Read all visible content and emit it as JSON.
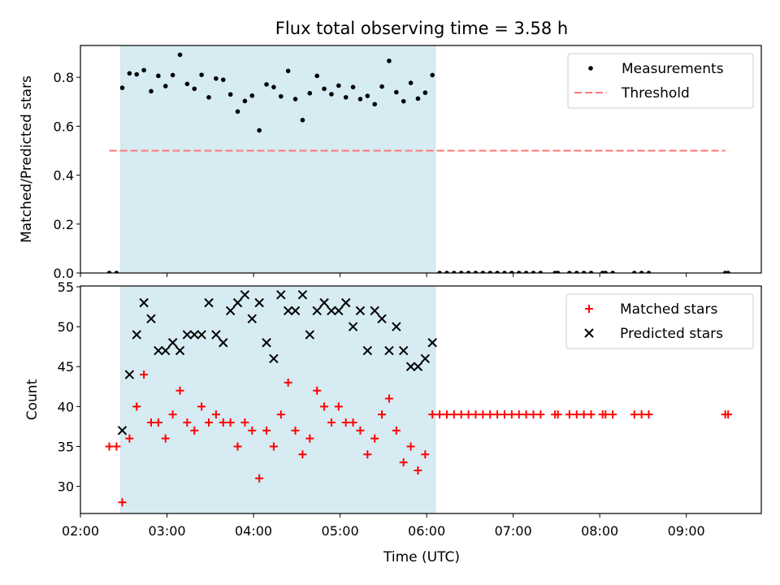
{
  "title": "Flux total observing time = 3.58 h",
  "xlabel": "Time (UTC)",
  "chart_data": [
    {
      "type": "scatter",
      "ylabel": "Matched/Predicted stars",
      "xlim": [
        "02:00",
        "09:52"
      ],
      "ylim": [
        0,
        0.93
      ],
      "yticks": [
        "0.0",
        "0.2",
        "0.4",
        "0.6",
        "0.8"
      ],
      "legend_position": "top-right",
      "shaded_region": {
        "x": [
          "02:28",
          "06:06"
        ],
        "color": "#add8e6"
      },
      "series": [
        {
          "name": "Measurements",
          "marker": "dot",
          "color": "#000000",
          "points": [
            [
              "02:20",
              0
            ],
            [
              "02:25",
              0
            ],
            [
              "02:29",
              0.757
            ],
            [
              "02:34",
              0.816
            ],
            [
              "02:39",
              0.812
            ],
            [
              "02:44",
              0.829
            ],
            [
              "02:49",
              0.743
            ],
            [
              "02:54",
              0.806
            ],
            [
              "02:59",
              0.764
            ],
            [
              "03:04",
              0.809
            ],
            [
              "03:09",
              0.892
            ],
            [
              "03:14",
              0.773
            ],
            [
              "03:19",
              0.753
            ],
            [
              "03:24",
              0.81
            ],
            [
              "03:29",
              0.718
            ],
            [
              "03:34",
              0.795
            ],
            [
              "03:39",
              0.79
            ],
            [
              "03:44",
              0.73
            ],
            [
              "03:49",
              0.66
            ],
            [
              "03:54",
              0.703
            ],
            [
              "03:59",
              0.725
            ],
            [
              "04:04",
              0.583
            ],
            [
              "04:09",
              0.771
            ],
            [
              "04:14",
              0.76
            ],
            [
              "04:19",
              0.722
            ],
            [
              "04:24",
              0.826
            ],
            [
              "04:29",
              0.711
            ],
            [
              "04:34",
              0.625
            ],
            [
              "04:39",
              0.735
            ],
            [
              "04:44",
              0.806
            ],
            [
              "04:49",
              0.753
            ],
            [
              "04:54",
              0.731
            ],
            [
              "04:59",
              0.766
            ],
            [
              "05:04",
              0.718
            ],
            [
              "05:09",
              0.76
            ],
            [
              "05:14",
              0.711
            ],
            [
              "05:19",
              0.724
            ],
            [
              "05:24",
              0.69
            ],
            [
              "05:29",
              0.762
            ],
            [
              "05:34",
              0.867
            ],
            [
              "05:39",
              0.739
            ],
            [
              "05:44",
              0.702
            ],
            [
              "05:49",
              0.777
            ],
            [
              "05:54",
              0.713
            ],
            [
              "05:59",
              0.737
            ],
            [
              "06:04",
              0.809
            ],
            [
              "06:09",
              0
            ],
            [
              "06:14",
              0
            ],
            [
              "06:19",
              0
            ],
            [
              "06:24",
              0
            ],
            [
              "06:29",
              0
            ],
            [
              "06:34",
              0
            ],
            [
              "06:39",
              0
            ],
            [
              "06:44",
              0
            ],
            [
              "06:49",
              0
            ],
            [
              "06:54",
              0
            ],
            [
              "06:59",
              0
            ],
            [
              "07:04",
              0
            ],
            [
              "07:09",
              0
            ],
            [
              "07:14",
              0
            ],
            [
              "07:19",
              0
            ],
            [
              "07:29",
              0
            ],
            [
              "07:31",
              0
            ],
            [
              "07:39",
              0
            ],
            [
              "07:44",
              0
            ],
            [
              "07:49",
              0
            ],
            [
              "07:54",
              0
            ],
            [
              "08:02",
              0
            ],
            [
              "08:04",
              0
            ],
            [
              "08:09",
              0
            ],
            [
              "08:24",
              0
            ],
            [
              "08:29",
              0
            ],
            [
              "08:34",
              0
            ],
            [
              "09:27",
              0
            ],
            [
              "09:29",
              0
            ]
          ]
        },
        {
          "name": "Threshold",
          "marker": "dashed-line",
          "color": "#ff7575",
          "points": [
            [
              "02:20",
              0.5
            ],
            [
              "09:27",
              0.5
            ]
          ]
        }
      ]
    },
    {
      "type": "scatter",
      "ylabel": "Count",
      "xlim": [
        "02:00",
        "09:52"
      ],
      "ylim": [
        26.6,
        55.1
      ],
      "yticks": [
        "30",
        "35",
        "40",
        "45",
        "50",
        "55"
      ],
      "xticks": [
        "02:00",
        "03:00",
        "04:00",
        "05:00",
        "06:00",
        "07:00",
        "08:00",
        "09:00"
      ],
      "legend_position": "top-right",
      "shaded_region": {
        "x": [
          "02:28",
          "06:06"
        ],
        "color": "#add8e6"
      },
      "series": [
        {
          "name": "Matched stars",
          "marker": "plus",
          "color": "#ff0000",
          "points": [
            [
              "02:20",
              35
            ],
            [
              "02:25",
              35
            ],
            [
              "02:29",
              28
            ],
            [
              "02:34",
              36
            ],
            [
              "02:39",
              40
            ],
            [
              "02:44",
              44
            ],
            [
              "02:49",
              38
            ],
            [
              "02:54",
              38
            ],
            [
              "02:59",
              36
            ],
            [
              "03:04",
              39
            ],
            [
              "03:09",
              42
            ],
            [
              "03:14",
              38
            ],
            [
              "03:19",
              37
            ],
            [
              "03:24",
              40
            ],
            [
              "03:29",
              38
            ],
            [
              "03:34",
              39
            ],
            [
              "03:39",
              38
            ],
            [
              "03:44",
              38
            ],
            [
              "03:49",
              35
            ],
            [
              "03:54",
              38
            ],
            [
              "03:59",
              37
            ],
            [
              "04:04",
              31
            ],
            [
              "04:09",
              37
            ],
            [
              "04:14",
              35
            ],
            [
              "04:19",
              39
            ],
            [
              "04:24",
              43
            ],
            [
              "04:29",
              37
            ],
            [
              "04:34",
              34
            ],
            [
              "04:39",
              36
            ],
            [
              "04:44",
              42
            ],
            [
              "04:49",
              40
            ],
            [
              "04:54",
              38
            ],
            [
              "04:59",
              40
            ],
            [
              "05:04",
              38
            ],
            [
              "05:09",
              38
            ],
            [
              "05:14",
              37
            ],
            [
              "05:19",
              34
            ],
            [
              "05:24",
              36
            ],
            [
              "05:29",
              39
            ],
            [
              "05:34",
              41
            ],
            [
              "05:39",
              37
            ],
            [
              "05:44",
              33
            ],
            [
              "05:49",
              35
            ],
            [
              "05:54",
              32
            ],
            [
              "05:59",
              34
            ],
            [
              "06:04",
              39
            ],
            [
              "06:09",
              39
            ],
            [
              "06:14",
              39
            ],
            [
              "06:19",
              39
            ],
            [
              "06:24",
              39
            ],
            [
              "06:29",
              39
            ],
            [
              "06:34",
              39
            ],
            [
              "06:39",
              39
            ],
            [
              "06:44",
              39
            ],
            [
              "06:49",
              39
            ],
            [
              "06:54",
              39
            ],
            [
              "06:59",
              39
            ],
            [
              "07:04",
              39
            ],
            [
              "07:09",
              39
            ],
            [
              "07:14",
              39
            ],
            [
              "07:19",
              39
            ],
            [
              "07:29",
              39
            ],
            [
              "07:31",
              39
            ],
            [
              "07:39",
              39
            ],
            [
              "07:44",
              39
            ],
            [
              "07:49",
              39
            ],
            [
              "07:54",
              39
            ],
            [
              "08:02",
              39
            ],
            [
              "08:04",
              39
            ],
            [
              "08:09",
              39
            ],
            [
              "08:24",
              39
            ],
            [
              "08:29",
              39
            ],
            [
              "08:34",
              39
            ],
            [
              "09:27",
              39
            ],
            [
              "09:29",
              39
            ]
          ]
        },
        {
          "name": "Predicted stars",
          "marker": "x",
          "color": "#000000",
          "points": [
            [
              "02:29",
              37
            ],
            [
              "02:34",
              44
            ],
            [
              "02:39",
              49
            ],
            [
              "02:44",
              53
            ],
            [
              "02:49",
              51
            ],
            [
              "02:54",
              47
            ],
            [
              "02:59",
              47
            ],
            [
              "03:04",
              48
            ],
            [
              "03:09",
              47
            ],
            [
              "03:14",
              49
            ],
            [
              "03:19",
              49
            ],
            [
              "03:24",
              49
            ],
            [
              "03:29",
              53
            ],
            [
              "03:34",
              49
            ],
            [
              "03:39",
              48
            ],
            [
              "03:44",
              52
            ],
            [
              "03:49",
              53
            ],
            [
              "03:54",
              54
            ],
            [
              "03:59",
              51
            ],
            [
              "04:04",
              53
            ],
            [
              "04:09",
              48
            ],
            [
              "04:14",
              46
            ],
            [
              "04:19",
              54
            ],
            [
              "04:24",
              52
            ],
            [
              "04:29",
              52
            ],
            [
              "04:34",
              54
            ],
            [
              "04:39",
              49
            ],
            [
              "04:44",
              52
            ],
            [
              "04:49",
              53
            ],
            [
              "04:54",
              52
            ],
            [
              "04:59",
              52
            ],
            [
              "05:04",
              53
            ],
            [
              "05:09",
              50
            ],
            [
              "05:14",
              52
            ],
            [
              "05:19",
              47
            ],
            [
              "05:24",
              52
            ],
            [
              "05:29",
              51
            ],
            [
              "05:34",
              47
            ],
            [
              "05:39",
              50
            ],
            [
              "05:44",
              47
            ],
            [
              "05:49",
              45
            ],
            [
              "05:54",
              45
            ],
            [
              "05:59",
              46
            ],
            [
              "06:04",
              48
            ]
          ]
        }
      ]
    }
  ]
}
